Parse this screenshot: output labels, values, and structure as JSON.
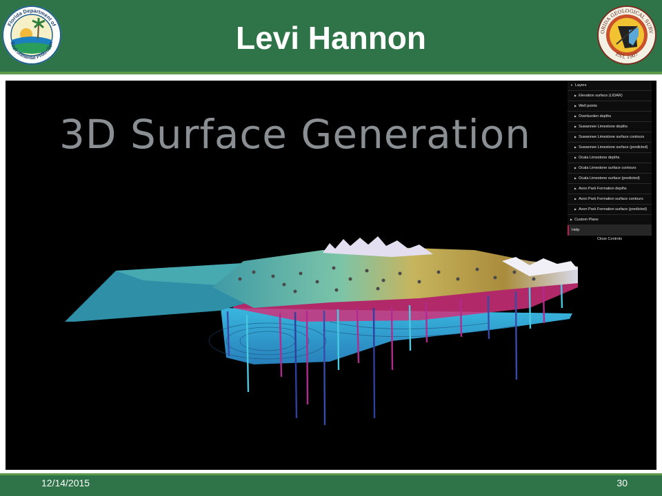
{
  "slide": {
    "title": "Levi Hannon",
    "date": "12/14/2015",
    "page_number": "30"
  },
  "logos": {
    "left": {
      "text_top": "Florida Department of",
      "text_bottom": "Environmental Protection",
      "icon": "dep-seal-icon"
    },
    "right": {
      "text_top": "FLORIDA GEOLOGICAL SURVEY",
      "text_bottom": "EST. 1907",
      "icon": "fgs-seal-icon"
    }
  },
  "screenshot": {
    "heading": "3D Surface Generation",
    "controls": {
      "layers_label": "Layers",
      "items": [
        "Elevation surface (LIDAR)",
        "Well points",
        "Overburden depths",
        "Suwannee Limestone depths",
        "Suwannee Limestone surface contours",
        "Suwannee Limestone surface (predicted)",
        "Ocala Limestone depths",
        "Ocala Limestone surface contours",
        "Ocala Limestone surface (predicted)",
        "Avon Park Formation depths",
        "Avon Park Formation surface contours",
        "Avon Park Formation surface (predicted)"
      ],
      "custom_plane_label": "Custom Plane",
      "help_label": "Help",
      "close_label": "Close Controls"
    }
  },
  "colors": {
    "header_green": "#2f7448",
    "accent_green": "#5f9a4a",
    "help_accent": "#c2185b"
  }
}
